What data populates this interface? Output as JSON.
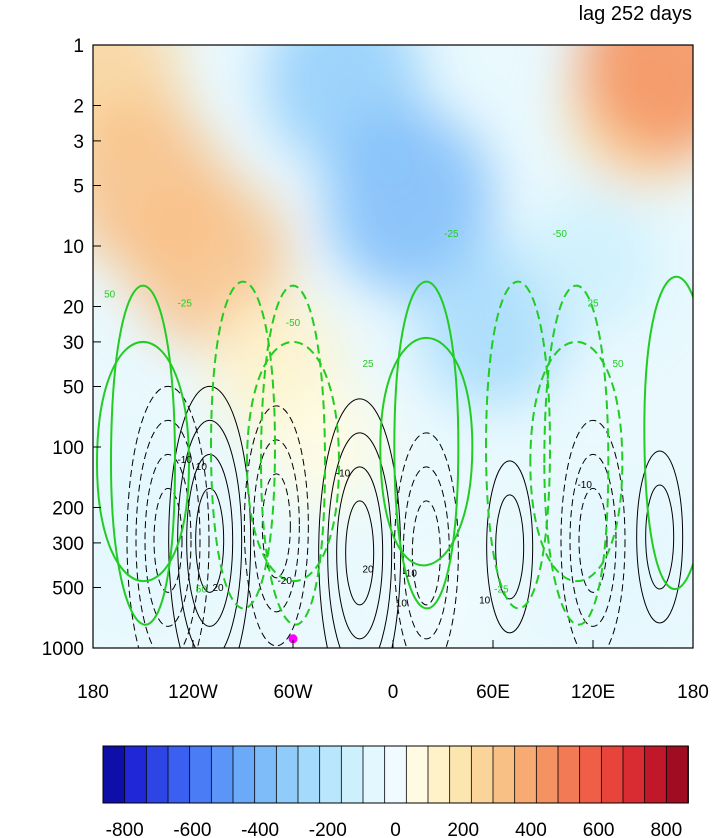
{
  "chart_data": {
    "type": "heatmap",
    "title": "lag 252 days",
    "xlabel": "",
    "ylabel": "",
    "x_ticks": [
      "180",
      "120W",
      "60W",
      "0",
      "60E",
      "120E",
      "180"
    ],
    "y_ticks": [
      "1",
      "2",
      "3",
      "5",
      "10",
      "20",
      "30",
      "50",
      "100",
      "200",
      "300",
      "500",
      "1000"
    ],
    "y_scale": "log",
    "x_range": [
      -180,
      180
    ],
    "y_range": [
      1,
      1000
    ],
    "colorbar": {
      "tick_labels": [
        "-800",
        "-600",
        "-400",
        "-200",
        "0",
        "200",
        "400",
        "600",
        "800"
      ],
      "levels_min": -800,
      "levels_max": 800,
      "n_colors": 27,
      "colors": [
        "#0e0ea8",
        "#1f27d6",
        "#2e45e6",
        "#3b5ff0",
        "#4a7cf5",
        "#5a95f7",
        "#6aaaf8",
        "#7dbcf9",
        "#90ccfa",
        "#a4dafb",
        "#b8e6fc",
        "#cdf0fd",
        "#e2f7fe",
        "#f0fbff",
        "#fffbe2",
        "#fff2c8",
        "#fde5b0",
        "#fbd49a",
        "#f9c085",
        "#f7aa72",
        "#f59262",
        "#f27a55",
        "#ef5f48",
        "#e8443c",
        "#d92b32",
        "#c0182a",
        "#a00c22"
      ]
    },
    "shading_blobs": [
      {
        "lon": -172,
        "p": 1.4,
        "value": 250
      },
      {
        "lon": -150,
        "p": 5,
        "value": 300
      },
      {
        "lon": -110,
        "p": 12,
        "value": 300
      },
      {
        "lon": -70,
        "p": 40,
        "value": 150
      },
      {
        "lon": -40,
        "p": 100,
        "value": 80
      },
      {
        "lon": -30,
        "p": 1.5,
        "value": -300
      },
      {
        "lon": 10,
        "p": 6,
        "value": -360
      },
      {
        "lon": 60,
        "p": 25,
        "value": -250
      },
      {
        "lon": 120,
        "p": 12,
        "value": -120
      },
      {
        "lon": 150,
        "p": 2,
        "value": 250
      },
      {
        "lon": 165,
        "p": 1.2,
        "value": 400
      },
      {
        "lon": -150,
        "p": 250,
        "value": -80
      },
      {
        "lon": 130,
        "p": 400,
        "value": -40
      },
      {
        "lon": 30,
        "p": 600,
        "value": 30
      }
    ],
    "contours_black": [
      {
        "lon": -135,
        "p": 260,
        "value": -30
      },
      {
        "lon": -110,
        "p": 260,
        "value": 30
      },
      {
        "lon": -70,
        "p": 220,
        "value": -20
      },
      {
        "lon": -20,
        "p": 300,
        "value": 30
      },
      {
        "lon": 20,
        "p": 300,
        "value": -20
      },
      {
        "lon": 70,
        "p": 280,
        "value": 10
      },
      {
        "lon": 120,
        "p": 260,
        "value": -20
      },
      {
        "lon": 160,
        "p": 250,
        "value": 10
      }
    ],
    "contours_green": [
      {
        "lon": -150,
        "p": 120,
        "value": 50
      },
      {
        "lon": -90,
        "p": 100,
        "value": -25
      },
      {
        "lon": -60,
        "p": 120,
        "value": -50
      },
      {
        "lon": 20,
        "p": 100,
        "value": 50
      },
      {
        "lon": 75,
        "p": 100,
        "value": -25
      },
      {
        "lon": 110,
        "p": 120,
        "value": -50
      },
      {
        "lon": 170,
        "p": 80,
        "value": 25
      }
    ],
    "contour_labels_black": [
      "-10",
      "10",
      "20",
      "-20",
      "-10",
      "20",
      "10",
      "-10",
      "10",
      "-10"
    ],
    "contour_labels_green": [
      "50",
      "-25",
      "-50",
      "25",
      "-25",
      "-50",
      "25",
      "50",
      "-25",
      "50"
    ],
    "marker": {
      "lon": -60,
      "p": 900,
      "color": "#ff00ff"
    }
  }
}
